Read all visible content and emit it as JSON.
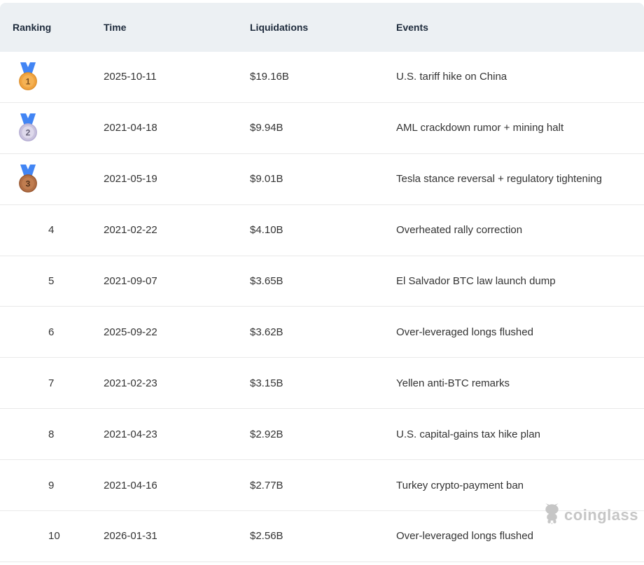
{
  "table": {
    "header": {
      "ranking": "Ranking",
      "time": "Time",
      "liquidations": "Liquidations",
      "events": "Events"
    },
    "rows": [
      {
        "ranking": "1",
        "medal": "gold",
        "time": "2025-10-11",
        "liquidations": "$19.16B",
        "events": "U.S. tariff hike on China"
      },
      {
        "ranking": "2",
        "medal": "silver",
        "time": "2021-04-18",
        "liquidations": "$9.94B",
        "events": "AML crackdown rumor + mining halt"
      },
      {
        "ranking": "3",
        "medal": "bronze",
        "time": "2021-05-19",
        "liquidations": "$9.01B",
        "events": "Tesla stance reversal + regulatory tightening"
      },
      {
        "ranking": "4",
        "medal": null,
        "time": "2021-02-22",
        "liquidations": "$4.10B",
        "events": "Overheated rally correction"
      },
      {
        "ranking": "5",
        "medal": null,
        "time": "2021-09-07",
        "liquidations": "$3.65B",
        "events": "El Salvador BTC law launch dump"
      },
      {
        "ranking": "6",
        "medal": null,
        "time": "2025-09-22",
        "liquidations": "$3.62B",
        "events": "Over-leveraged longs flushed"
      },
      {
        "ranking": "7",
        "medal": null,
        "time": "2021-02-23",
        "liquidations": "$3.15B",
        "events": "Yellen anti-BTC remarks"
      },
      {
        "ranking": "8",
        "medal": null,
        "time": "2021-04-23",
        "liquidations": "$2.92B",
        "events": "U.S. capital-gains tax hike plan"
      },
      {
        "ranking": "9",
        "medal": null,
        "time": "2021-04-16",
        "liquidations": "$2.77B",
        "events": "Turkey crypto-payment ban"
      },
      {
        "ranking": "10",
        "medal": null,
        "time": "2026-01-31",
        "liquidations": "$2.56B",
        "events": "Over-leveraged longs flushed"
      }
    ]
  },
  "watermark": {
    "text": "coinglass"
  },
  "colors": {
    "header_bg": "#ecf0f3",
    "header_text": "#1e2b3c",
    "body_text": "#333333",
    "divider": "#e9e9e9",
    "watermark_gray": "#c6c6c6",
    "ribbon_blue": "#4285f4",
    "medals": {
      "gold": {
        "ribbon": "#4285f4",
        "ring": "#f0a441",
        "edge": "#dd8f2b",
        "disc": "#f5b254",
        "number": "#7c4f1d"
      },
      "silver": {
        "ribbon": "#4285f4",
        "ring": "#c9c2dd",
        "edge": "#b3abd2",
        "disc": "#ded9eb",
        "number": "#635f75"
      },
      "bronze": {
        "ribbon": "#4285f4",
        "ring": "#b26f45",
        "edge": "#99572f",
        "disc": "#c07d50",
        "number": "#54331c"
      }
    }
  }
}
